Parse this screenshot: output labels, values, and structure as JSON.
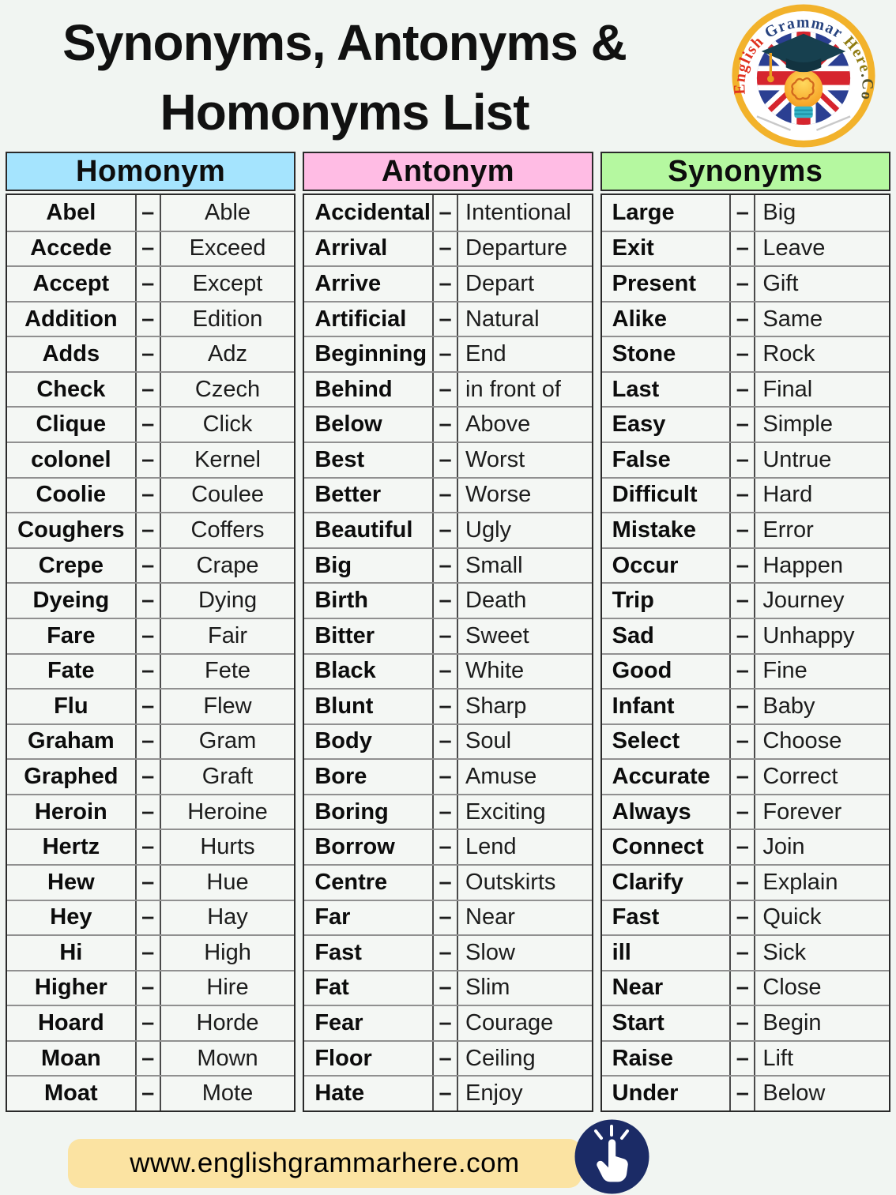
{
  "title": {
    "line1": "Synonyms, Antonyms &",
    "line2": "Homonyms List"
  },
  "logo": {
    "segments": [
      "English ",
      "Grammar ",
      "Here",
      ".Com"
    ],
    "ring_color": "#f2b22b",
    "segment_colors": [
      "#e0311f",
      "#27437f",
      "#8f7b10",
      "#53522c"
    ]
  },
  "separator": "–",
  "columns": [
    {
      "header": "Homonym",
      "header_color": "#a5e4fe",
      "align": "center",
      "pairs": [
        [
          "Abel",
          "Able"
        ],
        [
          "Accede",
          "Exceed"
        ],
        [
          "Accept",
          "Except"
        ],
        [
          "Addition",
          "Edition"
        ],
        [
          "Adds",
          "Adz"
        ],
        [
          "Check",
          "Czech"
        ],
        [
          "Clique",
          "Click"
        ],
        [
          "colonel",
          "Kernel"
        ],
        [
          "Coolie",
          "Coulee"
        ],
        [
          "Coughers",
          "Coffers"
        ],
        [
          "Crepe",
          "Crape"
        ],
        [
          "Dyeing",
          "Dying"
        ],
        [
          "Fare",
          "Fair"
        ],
        [
          "Fate",
          "Fete"
        ],
        [
          "Flu",
          "Flew"
        ],
        [
          "Graham",
          "Gram"
        ],
        [
          "Graphed",
          "Graft"
        ],
        [
          "Heroin",
          "Heroine"
        ],
        [
          "Hertz",
          "Hurts"
        ],
        [
          "Hew",
          "Hue"
        ],
        [
          "Hey",
          "Hay"
        ],
        [
          "Hi",
          "High"
        ],
        [
          "Higher",
          "Hire"
        ],
        [
          "Hoard",
          "Horde"
        ],
        [
          "Moan",
          "Mown"
        ],
        [
          "Moat",
          "Mote"
        ]
      ]
    },
    {
      "header": "Antonym",
      "header_color": "#ffbce4",
      "align": "left",
      "pairs": [
        [
          "Accidental",
          "Intentional"
        ],
        [
          "Arrival",
          "Departure"
        ],
        [
          "Arrive",
          "Depart"
        ],
        [
          "Artificial",
          "Natural"
        ],
        [
          "Beginning",
          "End"
        ],
        [
          "Behind",
          "in front of"
        ],
        [
          "Below",
          "Above"
        ],
        [
          "Best",
          "Worst"
        ],
        [
          "Better",
          "Worse"
        ],
        [
          "Beautiful",
          "Ugly"
        ],
        [
          "Big",
          "Small"
        ],
        [
          "Birth",
          "Death"
        ],
        [
          "Bitter",
          "Sweet"
        ],
        [
          "Black",
          "White"
        ],
        [
          "Blunt",
          "Sharp"
        ],
        [
          "Body",
          "Soul"
        ],
        [
          "Bore",
          "Amuse"
        ],
        [
          "Boring",
          "Exciting"
        ],
        [
          "Borrow",
          "Lend"
        ],
        [
          "Centre",
          "Outskirts"
        ],
        [
          "Far",
          "Near"
        ],
        [
          "Fast",
          "Slow"
        ],
        [
          "Fat",
          "Slim"
        ],
        [
          "Fear",
          "Courage"
        ],
        [
          "Floor",
          "Ceiling"
        ],
        [
          "Hate",
          "Enjoy"
        ]
      ]
    },
    {
      "header": "Synonyms",
      "header_color": "#b5f8a0",
      "align": "left",
      "pairs": [
        [
          "Large",
          "Big"
        ],
        [
          "Exit",
          "Leave"
        ],
        [
          "Present",
          "Gift"
        ],
        [
          "Alike",
          "Same"
        ],
        [
          "Stone",
          "Rock"
        ],
        [
          "Last",
          "Final"
        ],
        [
          "Easy",
          "Simple"
        ],
        [
          "False",
          "Untrue"
        ],
        [
          "Difficult",
          "Hard"
        ],
        [
          "Mistake",
          "Error"
        ],
        [
          "Occur",
          "Happen"
        ],
        [
          "Trip",
          "Journey"
        ],
        [
          "Sad",
          "Unhappy"
        ],
        [
          "Good",
          "Fine"
        ],
        [
          "Infant",
          "Baby"
        ],
        [
          "Select",
          "Choose"
        ],
        [
          "Accurate",
          "Correct"
        ],
        [
          "Always",
          "Forever"
        ],
        [
          "Connect",
          "Join"
        ],
        [
          "Clarify",
          "Explain"
        ],
        [
          "Fast",
          "Quick"
        ],
        [
          "ill",
          "Sick"
        ],
        [
          "Near",
          "Close"
        ],
        [
          "Start",
          "Begin"
        ],
        [
          "Raise",
          "Lift"
        ],
        [
          "Under",
          "Below"
        ]
      ]
    }
  ],
  "footer": {
    "url": "www.englishgrammarhere.com",
    "pill_color": "#fbe3a2",
    "button_color": "#1b2b66"
  }
}
